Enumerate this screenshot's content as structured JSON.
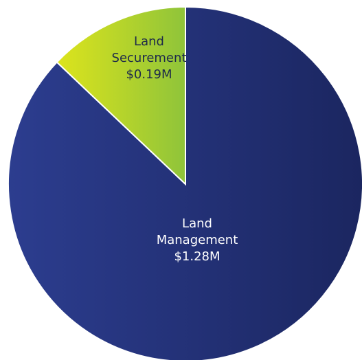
{
  "chart_data": {
    "type": "pie",
    "categories": [
      "Land Management",
      "Land Securement"
    ],
    "values": [
      1.28,
      0.19
    ],
    "value_labels": [
      "$1.28M",
      "$0.19M"
    ],
    "colors": [
      [
        "#2c3d8f",
        "#1b2660"
      ],
      [
        "#dde41c",
        "#8fc43a"
      ]
    ],
    "label_colors": [
      "#ffffff",
      "#1e2a4a"
    ]
  }
}
